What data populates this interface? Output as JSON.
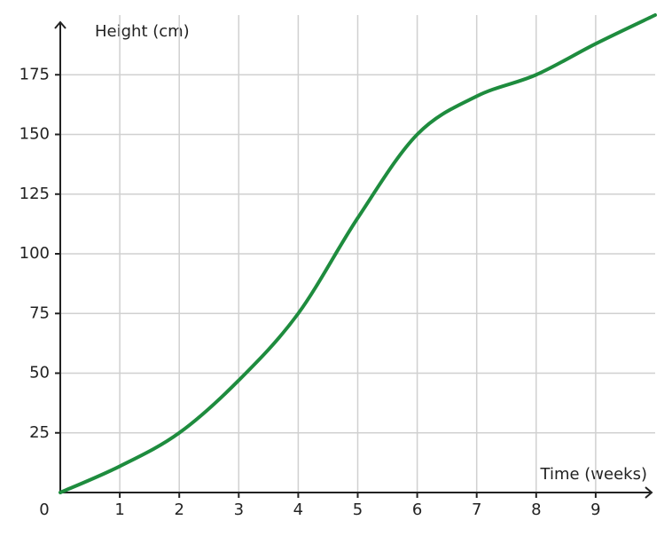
{
  "chart_data": {
    "type": "line",
    "y_label": "Height (cm)",
    "x_label": "Time (weeks)",
    "x": [
      0,
      1,
      2,
      3,
      4,
      5,
      6,
      7,
      8,
      9,
      10
    ],
    "series": [
      {
        "color": "#1e8c3e",
        "values": [
          0,
          11,
          25,
          47,
          75,
          115,
          150,
          166,
          175,
          188,
          200
        ]
      }
    ],
    "xlim": [
      0,
      10
    ],
    "ylim": [
      0,
      200
    ],
    "xticks": [
      0,
      1,
      2,
      3,
      4,
      5,
      6,
      7,
      8,
      9
    ],
    "yticks": [
      25,
      50,
      75,
      100,
      125,
      150,
      175
    ],
    "grid": true
  }
}
